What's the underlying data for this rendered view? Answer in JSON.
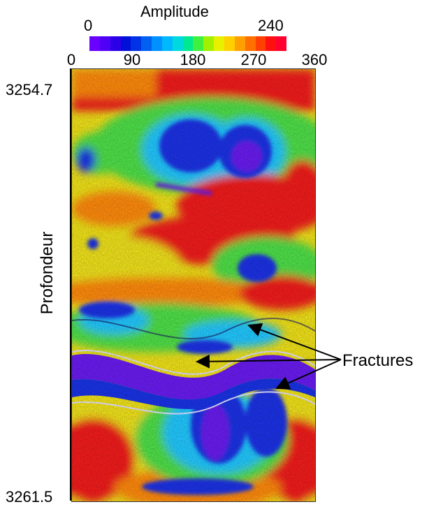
{
  "colorbar": {
    "title": "Amplitude",
    "min_label": "0",
    "max_label": "240",
    "colors": [
      "#6a00ff",
      "#5000f5",
      "#2b00e8",
      "#0010d8",
      "#0033e6",
      "#0060f0",
      "#0090ff",
      "#00b8ff",
      "#00d8e0",
      "#00e890",
      "#40f040",
      "#a0f000",
      "#e8f000",
      "#ffd000",
      "#ffa000",
      "#ff7000",
      "#ff4000",
      "#ff1010",
      "#ff0030"
    ]
  },
  "azimuth_axis": {
    "ticks": [
      "0",
      "90",
      "180",
      "270",
      "360"
    ]
  },
  "depth_axis": {
    "label": "Profondeur",
    "top_label": "3254.7",
    "bottom_label": "3261.5"
  },
  "annotation": {
    "label": "Fractures",
    "arrow_color": "#000000"
  },
  "image": {
    "description": "borehole amplitude image with sinusoidal fracture traces",
    "palette": {
      "red": "#f21d1d",
      "orange": "#ff8a10",
      "yellow": "#f0e21a",
      "green": "#4fe04a",
      "cyan": "#20c8ff",
      "blue": "#1a33e6",
      "purple": "#6a1cf0"
    }
  }
}
